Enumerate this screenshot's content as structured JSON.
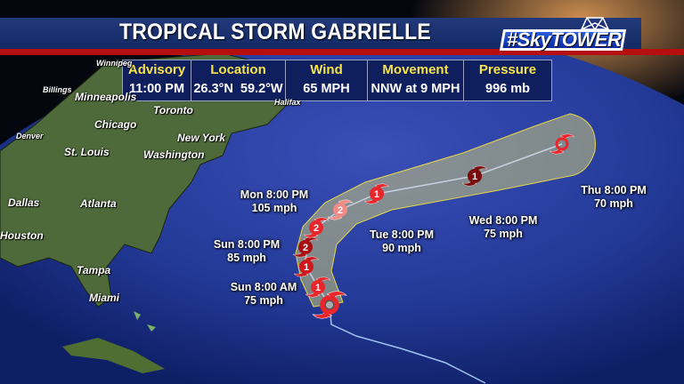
{
  "header": {
    "title": "TROPICAL STORM GABRIELLE",
    "logo_text": "#SkyTOWER"
  },
  "info": [
    {
      "label": "Advisory",
      "value": "11:00 PM"
    },
    {
      "label": "Location",
      "value": "26.3°N  59.2°W"
    },
    {
      "label": "Wind",
      "value": "65 MPH"
    },
    {
      "label": "Movement",
      "value": "NNW at 9 MPH"
    },
    {
      "label": "Pressure",
      "value": "996 mb"
    }
  ],
  "cities": [
    "Winnipeg",
    "Billings",
    "Minneapolis",
    "Toronto",
    "Halifax",
    "Chicago",
    "New York",
    "Denver",
    "St. Louis",
    "Washington",
    "Dallas",
    "Atlanta",
    "Houston",
    "Tampa",
    "Miami"
  ],
  "forecast_labels": [
    {
      "time": "Mon 8:00 PM",
      "wind": "105 mph"
    },
    {
      "time": "Sun 8:00 PM",
      "wind": "85 mph"
    },
    {
      "time": "Sun 8:00 AM",
      "wind": "75 mph"
    },
    {
      "time": "Tue 8:00 PM",
      "wind": "90 mph"
    },
    {
      "time": "Wed 8:00 PM",
      "wind": "75 mph"
    },
    {
      "time": "Thu 8:00 PM",
      "wind": "70 mph"
    }
  ],
  "storm_points": [
    {
      "category": "",
      "type": "tropical-storm-current",
      "color": "#e8262b"
    },
    {
      "category": "1",
      "type": "hurricane",
      "color": "#e8262b"
    },
    {
      "category": "1",
      "type": "hurricane",
      "color": "#d0181c"
    },
    {
      "category": "2",
      "type": "hurricane",
      "color": "#a80f12"
    },
    {
      "category": "2",
      "type": "hurricane",
      "color": "#e8262b"
    },
    {
      "category": "2",
      "type": "hurricane",
      "color": "#f08a86"
    },
    {
      "category": "1",
      "type": "hurricane",
      "color": "#e8262b"
    },
    {
      "category": "1",
      "type": "hurricane",
      "color": "#7a0a0c"
    },
    {
      "category": "",
      "type": "post-tropical",
      "color": "#e8262b"
    }
  ],
  "colors": {
    "cone": "#c9c77a",
    "cone_edge": "#e6d84a",
    "title_band": "#1a3170",
    "stripe": "#b5100f",
    "label_yellow": "#f6e44a",
    "past_track": "#9fc4ee"
  }
}
